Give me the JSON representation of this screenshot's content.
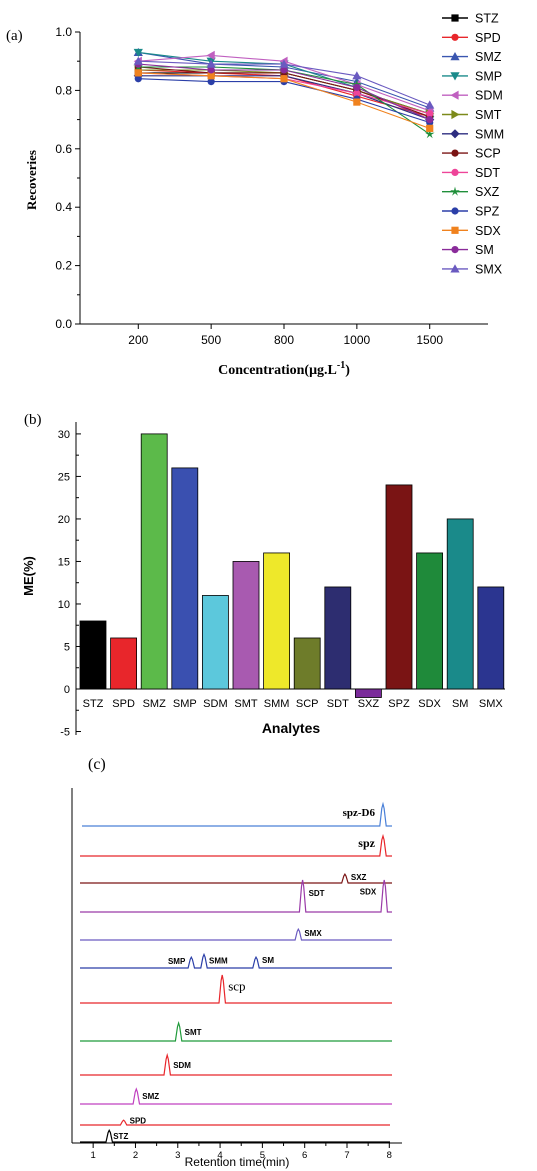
{
  "chart_data": [
    {
      "panel_label": "(a)",
      "type": "line",
      "xlabel": "Concentration(μg.L",
      "xlabel_sup": "-1",
      "xlabel_tail": ")",
      "ylabel": "Recoveries",
      "categories": [
        "200",
        "500",
        "800",
        "1000",
        "1500"
      ],
      "ylim": [
        0.0,
        1.0
      ],
      "yticks": [
        "0.0",
        "0.2",
        "0.4",
        "0.6",
        "0.8",
        "1.0"
      ],
      "legend_position": "outside-right",
      "series": [
        {
          "name": "STZ",
          "color": "#000000",
          "marker": "square",
          "values": [
            0.86,
            0.86,
            0.86,
            0.8,
            0.72
          ]
        },
        {
          "name": "SPD",
          "color": "#e8262b",
          "marker": "circle",
          "values": [
            0.87,
            0.86,
            0.85,
            0.78,
            0.71
          ]
        },
        {
          "name": "SMZ",
          "color": "#3a56b0",
          "marker": "triangle-up",
          "values": [
            0.93,
            0.89,
            0.88,
            0.83,
            0.74
          ]
        },
        {
          "name": "SMP",
          "color": "#1a8a8a",
          "marker": "triangle-down",
          "values": [
            0.93,
            0.9,
            0.89,
            0.81,
            0.7
          ]
        },
        {
          "name": "SDM",
          "color": "#c060c0",
          "marker": "triangle-left",
          "values": [
            0.9,
            0.92,
            0.9,
            0.82,
            0.73
          ]
        },
        {
          "name": "SMT",
          "color": "#7c8a1a",
          "marker": "triangle-right",
          "values": [
            0.87,
            0.87,
            0.86,
            0.8,
            0.72
          ]
        },
        {
          "name": "SMM",
          "color": "#2d2d80",
          "marker": "diamond",
          "values": [
            0.85,
            0.85,
            0.85,
            0.79,
            0.7
          ]
        },
        {
          "name": "SCP",
          "color": "#7a1414",
          "marker": "circle",
          "values": [
            0.88,
            0.86,
            0.86,
            0.8,
            0.71
          ]
        },
        {
          "name": "SDT",
          "color": "#ee4499",
          "marker": "circle",
          "values": [
            0.86,
            0.85,
            0.84,
            0.79,
            0.72
          ]
        },
        {
          "name": "SXZ",
          "color": "#1f8f3a",
          "marker": "star",
          "values": [
            0.88,
            0.88,
            0.87,
            0.82,
            0.65
          ]
        },
        {
          "name": "SPZ",
          "color": "#2b3fa8",
          "marker": "circle",
          "values": [
            0.84,
            0.83,
            0.83,
            0.77,
            0.69
          ]
        },
        {
          "name": "SDX",
          "color": "#f0821e",
          "marker": "square",
          "values": [
            0.86,
            0.85,
            0.84,
            0.76,
            0.67
          ]
        },
        {
          "name": "SM",
          "color": "#8a2b9a",
          "marker": "circle",
          "values": [
            0.89,
            0.87,
            0.87,
            0.81,
            0.7
          ]
        },
        {
          "name": "SMX",
          "color": "#6a5ac0",
          "marker": "triangle-up",
          "values": [
            0.9,
            0.89,
            0.89,
            0.85,
            0.75
          ]
        }
      ]
    },
    {
      "panel_label": "(b)",
      "type": "bar",
      "xlabel": "Analytes",
      "ylabel": "ME(%)",
      "ylim": [
        -5,
        30
      ],
      "yticks": [
        "-5",
        "0",
        "5",
        "10",
        "15",
        "20",
        "25",
        "30"
      ],
      "categories": [
        "STZ",
        "SPD",
        "SMZ",
        "SMP",
        "SDM",
        "SMT",
        "SMM",
        "SCP",
        "SDT",
        "SXZ",
        "SPZ",
        "SDX",
        "SM",
        "SMX"
      ],
      "values": [
        8,
        6,
        30,
        26,
        11,
        15,
        16,
        6,
        12,
        -1,
        24,
        16,
        20,
        12
      ],
      "colors": [
        "#000000",
        "#e8262b",
        "#5cba4a",
        "#3a50b0",
        "#5cc8dc",
        "#a85ab0",
        "#eee82a",
        "#6e7c2a",
        "#2d2d70",
        "#7a2a9a",
        "#7a1414",
        "#1f8a3a",
        "#1a8a8a",
        "#2b3590"
      ]
    },
    {
      "panel_label": "(c)",
      "type": "line",
      "subtype": "stacked-chromatograms",
      "xlabel": "Retention time(min)",
      "xticks": [
        "1",
        "2",
        "3",
        "4",
        "5",
        "6",
        "7",
        "8"
      ],
      "xlim": [
        0.5,
        8.3
      ],
      "traces": [
        {
          "color": "#4a80d8",
          "peaks": [
            {
              "label": "spz-D6",
              "rt": 7.85,
              "h": 1.0
            }
          ]
        },
        {
          "color": "#e8262b",
          "peaks": [
            {
              "label": "spz",
              "rt": 7.85,
              "h": 1.0
            }
          ]
        },
        {
          "color": "#7a1414",
          "peaks": [
            {
              "label": "SXZ",
              "rt": 6.95,
              "h": 0.55
            }
          ]
        },
        {
          "color": "#9a3aa8",
          "peaks": [
            {
              "label": "SDT",
              "rt": 5.95,
              "h": 1.0
            },
            {
              "label": "SDX",
              "rt": 7.88,
              "h": 1.0
            }
          ]
        },
        {
          "color": "#6a5ac0",
          "peaks": [
            {
              "label": "SMX",
              "rt": 5.85,
              "h": 0.6
            }
          ]
        },
        {
          "color": "#2b3fa8",
          "peaks": [
            {
              "label": "SMP",
              "rt": 3.32,
              "h": 0.6
            },
            {
              "label": "SMM",
              "rt": 3.62,
              "h": 0.75
            },
            {
              "label": "SM",
              "rt": 4.85,
              "h": 0.6
            }
          ]
        },
        {
          "color": "#e8262b",
          "peaks": [
            {
              "label": "scp",
              "rt": 4.05,
              "h": 1.0
            }
          ]
        },
        {
          "color": "#1f9a3a",
          "peaks": [
            {
              "label": "SMT",
              "rt": 3.02,
              "h": 0.85
            }
          ]
        },
        {
          "color": "#e8262b",
          "peaks": [
            {
              "label": "SDM",
              "rt": 2.75,
              "h": 0.9
            }
          ]
        },
        {
          "color": "#c040c0",
          "peaks": [
            {
              "label": "SMZ",
              "rt": 2.02,
              "h": 0.75
            }
          ]
        },
        {
          "color": "#e8262b",
          "peaks": [
            {
              "label": "SPD",
              "rt": 1.72,
              "h": 0.4
            }
          ]
        },
        {
          "color": "#000000",
          "peaks": [
            {
              "label": "STZ",
              "rt": 1.38,
              "h": 0.65
            }
          ]
        }
      ]
    }
  ]
}
